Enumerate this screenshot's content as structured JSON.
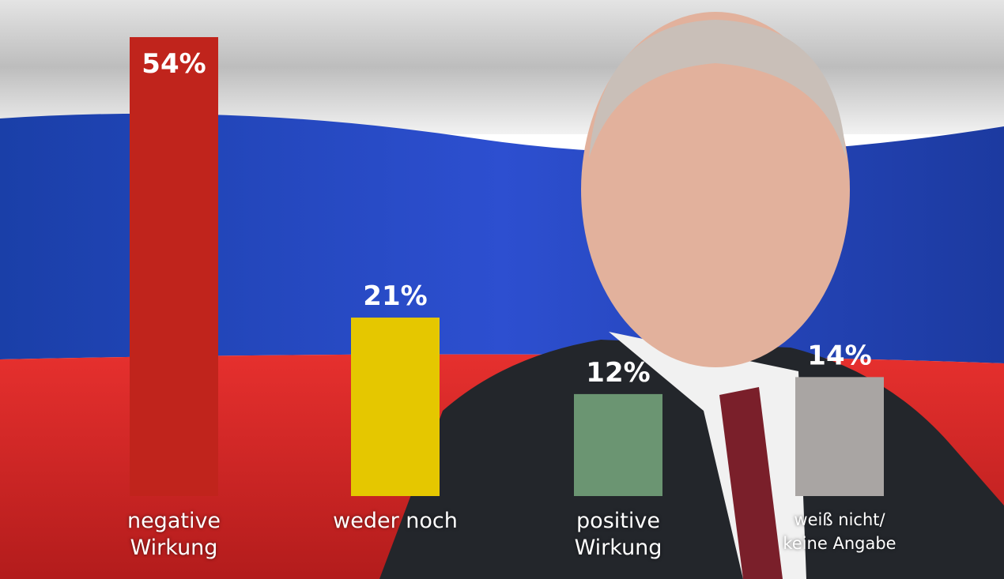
{
  "chart_data": {
    "type": "bar",
    "categories": [
      "negative Wirkung",
      "weder noch",
      "positive Wirkung",
      "weiß nicht/ keine Angabe"
    ],
    "values": [
      54,
      21,
      12,
      14
    ],
    "value_labels": [
      "54%",
      "21%",
      "12%",
      "14%"
    ],
    "colors": [
      "#c0241c",
      "#e5c700",
      "#6b9572",
      "#a9a5a3"
    ]
  }
}
